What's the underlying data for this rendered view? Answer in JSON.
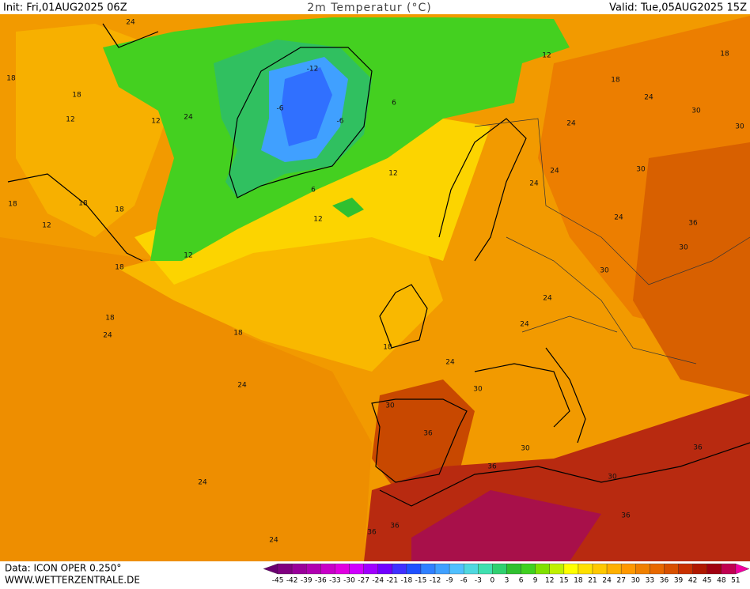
{
  "header": {
    "init": "Init: Fri,01AUG2025 06Z",
    "title": "2m Temperatur (°C)",
    "valid": "Valid: Tue,05AUG2025 15Z"
  },
  "footer": {
    "source": "Data: ICON OPER 0.250°",
    "site": "WWW.WETTERZENTRALE.DE"
  },
  "map_labels": [
    24,
    18,
    18,
    12,
    12,
    24,
    18,
    18,
    18,
    12,
    18,
    12,
    -12,
    -6,
    -6,
    6,
    6,
    12,
    12,
    12,
    18,
    18,
    24,
    24,
    30,
    30,
    24,
    30,
    24,
    24,
    36,
    30,
    30,
    24,
    24,
    24,
    18,
    18,
    18,
    24,
    24,
    30,
    30,
    36,
    30,
    30,
    36,
    36,
    36,
    24,
    24,
    36,
    36
  ],
  "colorbar": {
    "levels": [
      -45,
      -42,
      -39,
      -36,
      -33,
      -30,
      -27,
      -24,
      -21,
      -18,
      -15,
      -12,
      -9,
      -6,
      -3,
      0,
      3,
      6,
      9,
      12,
      15,
      18,
      21,
      24,
      27,
      30,
      33,
      36,
      39,
      42,
      45,
      48,
      51
    ],
    "colors": [
      "#6a0070",
      "#800080",
      "#99009a",
      "#b000b0",
      "#c800c8",
      "#e000e0",
      "#d000ff",
      "#a000ff",
      "#7000ff",
      "#4030ff",
      "#2050ff",
      "#3080ff",
      "#40a0ff",
      "#50c0ff",
      "#50d8e0",
      "#40e0b0",
      "#30d070",
      "#30c030",
      "#40d020",
      "#80e000",
      "#c0f000",
      "#ffff00",
      "#ffe000",
      "#ffc800",
      "#ffb000",
      "#ff9800",
      "#f08000",
      "#e86800",
      "#d85000",
      "#c83000",
      "#b01800",
      "#a00010",
      "#c00050",
      "#f000a0"
    ]
  }
}
